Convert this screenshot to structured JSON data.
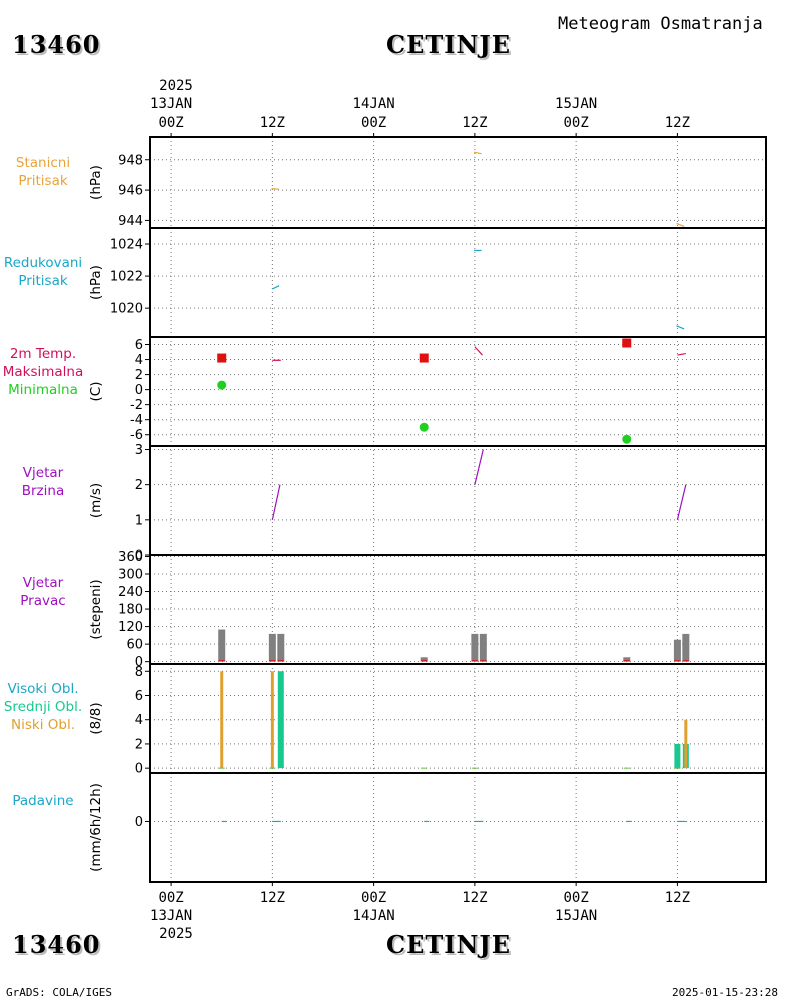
{
  "header": {
    "station_code": "13460",
    "station_name": "CETINJE",
    "subtitle": "Meteogram Osmatranja"
  },
  "footer": {
    "station_code": "13460",
    "station_name": "CETINJE",
    "left_credit": "GrADS: COLA/IGES",
    "timestamp": "2025-01-15-23:28"
  },
  "time_axis": {
    "top_year": "2025",
    "bottom_year": "2025",
    "ticks": [
      {
        "hour": 0,
        "label": "00Z",
        "date": "13JAN"
      },
      {
        "hour": 12,
        "label": "12Z",
        "date": ""
      },
      {
        "hour": 24,
        "label": "00Z",
        "date": "14JAN"
      },
      {
        "hour": 36,
        "label": "12Z",
        "date": ""
      },
      {
        "hour": 48,
        "label": "00Z",
        "date": "15JAN"
      },
      {
        "hour": 60,
        "label": "12Z",
        "date": ""
      }
    ]
  },
  "colors": {
    "station_pressure": "#e8a33c",
    "reduced_pressure": "#1aa7c8",
    "temp_max": "#e01010",
    "temp_min": "#20d020",
    "temp_line": "#d0105a",
    "wind": "#a010c0",
    "direction_bar": "#808080",
    "high_cloud": "#1aa7c8",
    "mid_cloud": "#18c890",
    "low_cloud": "#e0a030",
    "precip": "#1aa7c8"
  },
  "chart_data": [
    {
      "type": "line",
      "panel": "station_pressure",
      "labels": [
        "Stanicni",
        "Pritisak"
      ],
      "ylabel": "(hPa)",
      "ylim": [
        943.5,
        949.5
      ],
      "yticks": [
        944,
        946,
        948
      ],
      "series": [
        {
          "x": [
            11.9,
            12.8
          ],
          "y": [
            946.1,
            946.05
          ]
        },
        {
          "x": [
            35.9,
            36.8
          ],
          "y": [
            948.5,
            948.4
          ]
        },
        {
          "x": [
            59.9,
            60.8
          ],
          "y": [
            943.8,
            943.6
          ]
        }
      ]
    },
    {
      "type": "line",
      "panel": "reduced_pressure",
      "labels": [
        "Redukovani",
        "Pritisak"
      ],
      "ylabel": "(hPa)",
      "ylim": [
        1018.2,
        1025.0
      ],
      "yticks": [
        1020,
        1022,
        1024
      ],
      "series": [
        {
          "x": [
            12.0,
            12.8
          ],
          "y": [
            1021.2,
            1021.4
          ]
        },
        {
          "x": [
            35.9,
            36.8
          ],
          "y": [
            1023.6,
            1023.6
          ]
        },
        {
          "x": [
            59.9,
            60.8
          ],
          "y": [
            1018.9,
            1018.7
          ]
        }
      ]
    },
    {
      "type": "scatter",
      "panel": "temperature",
      "labels": [
        "2m Temp.",
        "Maksimalna",
        "Minimalna"
      ],
      "ylabel": "(C)",
      "ylim": [
        -7.5,
        7
      ],
      "yticks": [
        -6,
        -4,
        -2,
        0,
        2,
        4,
        6
      ],
      "max": {
        "x": [
          6,
          30,
          54
        ],
        "y": [
          4.2,
          4.2,
          6.2
        ]
      },
      "min": {
        "x": [
          6,
          30,
          54
        ],
        "y": [
          0.6,
          -5.0,
          -6.6
        ]
      },
      "temp_lines": [
        {
          "x": [
            12.0,
            13.0
          ],
          "y": [
            3.9,
            3.9
          ]
        },
        {
          "x": [
            36.0,
            36.9
          ],
          "y": [
            5.7,
            4.6
          ]
        },
        {
          "x": [
            60.0,
            61.0
          ],
          "y": [
            4.6,
            4.8
          ]
        }
      ]
    },
    {
      "type": "line",
      "panel": "wind_speed",
      "labels": [
        "Vjetar",
        "Brzina"
      ],
      "ylabel": "(m/s)",
      "ylim": [
        0,
        3.1
      ],
      "yticks": [
        0,
        1,
        2,
        3
      ],
      "series": [
        {
          "x": [
            12.0,
            12.9
          ],
          "y": [
            1,
            2
          ]
        },
        {
          "x": [
            36.0,
            37.0
          ],
          "y": [
            2,
            3
          ]
        },
        {
          "x": [
            60.0,
            61.0
          ],
          "y": [
            1,
            2
          ]
        }
      ]
    },
    {
      "type": "bar",
      "panel": "wind_direction",
      "labels": [
        "Vjetar",
        "Pravac"
      ],
      "ylabel": "(stepeni)",
      "ylim": [
        -8,
        365
      ],
      "yticks": [
        0,
        60,
        120,
        180,
        240,
        300,
        360
      ],
      "bars": [
        {
          "x": 6,
          "value": 110
        },
        {
          "x": 12,
          "value": 95
        },
        {
          "x": 13,
          "value": 95
        },
        {
          "x": 30,
          "value": 15
        },
        {
          "x": 36,
          "value": 95
        },
        {
          "x": 37,
          "value": 95
        },
        {
          "x": 54,
          "value": 15
        },
        {
          "x": 60,
          "value": 75
        },
        {
          "x": 61,
          "value": 95
        }
      ]
    },
    {
      "type": "bar",
      "panel": "clouds",
      "labels": [
        "Visoki Obl.",
        "Srednji Obl.",
        "Niski Obl."
      ],
      "ylabel": "(8/8)",
      "ylim": [
        -0.4,
        8.6
      ],
      "yticks": [
        0,
        2,
        4,
        6,
        8
      ],
      "low": [
        {
          "x": 6,
          "value": 8
        },
        {
          "x": 12,
          "value": 8
        },
        {
          "x": 61,
          "value": 4
        }
      ],
      "mid": [
        {
          "x": 13,
          "value": 8
        },
        {
          "x": 60,
          "value": 2
        },
        {
          "x": 61,
          "value": 2
        }
      ]
    },
    {
      "type": "line",
      "panel": "precipitation",
      "labels": [
        "Padavine"
      ],
      "ylabel": "(mm/6h/12h)",
      "ylim": [
        -1,
        0.8
      ],
      "yticks": [
        0
      ],
      "series": [
        {
          "x": [
            6.0,
            6.6
          ],
          "y": [
            0,
            0
          ]
        },
        {
          "x": [
            12.0,
            13.0
          ],
          "y": [
            0,
            0
          ]
        },
        {
          "x": [
            30.0,
            30.6
          ],
          "y": [
            0,
            0
          ]
        },
        {
          "x": [
            36.0,
            37.0
          ],
          "y": [
            0,
            0
          ]
        },
        {
          "x": [
            54.0,
            54.6
          ],
          "y": [
            0,
            0
          ]
        },
        {
          "x": [
            60.0,
            61.0
          ],
          "y": [
            0,
            0
          ]
        }
      ]
    }
  ]
}
